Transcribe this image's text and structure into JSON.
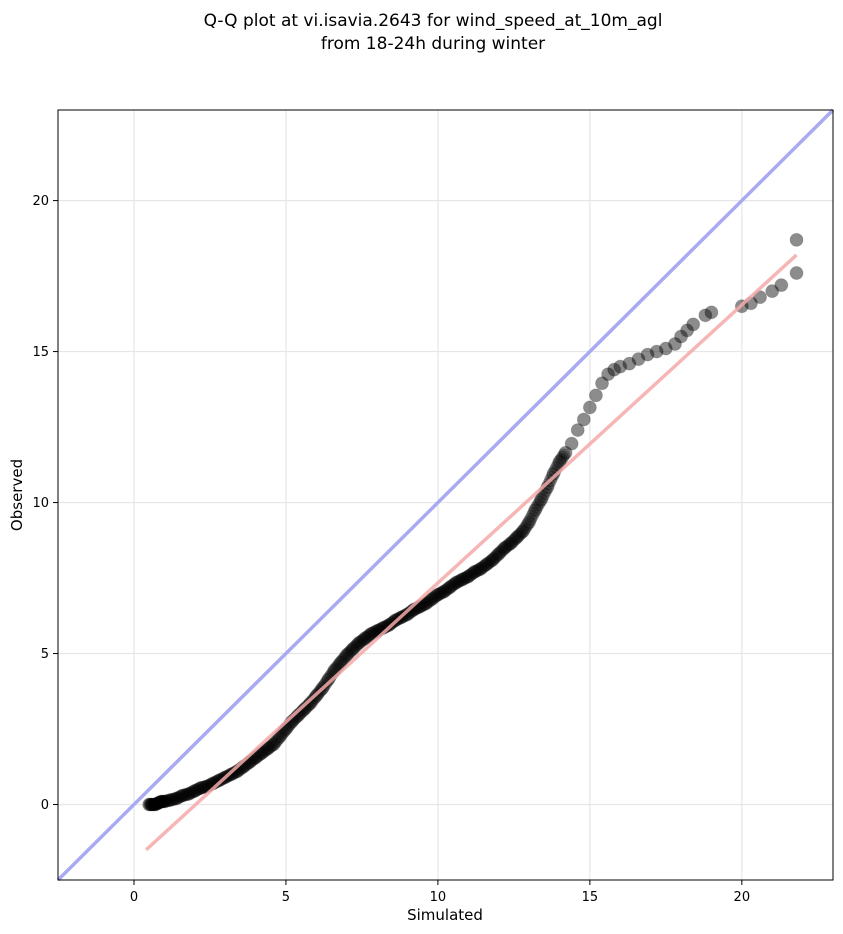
{
  "chart_data": {
    "type": "scatter",
    "title_line1": "Q-Q plot at vi.isavia.2643 for wind_speed_at_10m_agl",
    "title_line2": "from 18-24h during winter",
    "xlabel": "Simulated",
    "ylabel": "Observed",
    "xlim": [
      -2.5,
      23
    ],
    "ylim": [
      -2.5,
      23
    ],
    "x_ticks": [
      0,
      5,
      10,
      15,
      20
    ],
    "y_ticks": [
      0,
      5,
      10,
      15,
      20
    ],
    "grid": true,
    "colors": {
      "points": "#000000",
      "identity_line": "#a9aaf2",
      "fit_line": "#f5a9a9"
    },
    "identity_line": {
      "x": [
        -2.5,
        23
      ],
      "y": [
        -2.5,
        23
      ]
    },
    "fit_line": {
      "x": [
        0.4,
        21.8
      ],
      "y": [
        -1.5,
        18.2
      ]
    },
    "points": [
      [
        0.5,
        0.0
      ],
      [
        0.6,
        0.0
      ],
      [
        0.7,
        0.0
      ],
      [
        0.8,
        0.05
      ],
      [
        0.9,
        0.1
      ],
      [
        1.0,
        0.1
      ],
      [
        1.2,
        0.15
      ],
      [
        1.4,
        0.2
      ],
      [
        1.6,
        0.3
      ],
      [
        1.8,
        0.35
      ],
      [
        2.0,
        0.45
      ],
      [
        2.2,
        0.55
      ],
      [
        2.4,
        0.6
      ],
      [
        2.6,
        0.7
      ],
      [
        2.8,
        0.8
      ],
      [
        3.0,
        0.9
      ],
      [
        3.2,
        1.0
      ],
      [
        3.4,
        1.1
      ],
      [
        3.6,
        1.25
      ],
      [
        3.8,
        1.4
      ],
      [
        4.0,
        1.55
      ],
      [
        4.2,
        1.7
      ],
      [
        4.4,
        1.85
      ],
      [
        4.6,
        2.0
      ],
      [
        4.8,
        2.25
      ],
      [
        5.0,
        2.5
      ],
      [
        5.2,
        2.75
      ],
      [
        5.4,
        2.95
      ],
      [
        5.6,
        3.15
      ],
      [
        5.8,
        3.35
      ],
      [
        6.0,
        3.6
      ],
      [
        6.2,
        3.85
      ],
      [
        6.4,
        4.15
      ],
      [
        6.6,
        4.45
      ],
      [
        6.8,
        4.7
      ],
      [
        7.0,
        4.95
      ],
      [
        7.2,
        5.15
      ],
      [
        7.4,
        5.35
      ],
      [
        7.6,
        5.5
      ],
      [
        7.8,
        5.65
      ],
      [
        8.0,
        5.75
      ],
      [
        8.2,
        5.85
      ],
      [
        8.4,
        5.95
      ],
      [
        8.6,
        6.1
      ],
      [
        8.8,
        6.2
      ],
      [
        9.0,
        6.3
      ],
      [
        9.2,
        6.45
      ],
      [
        9.4,
        6.55
      ],
      [
        9.6,
        6.65
      ],
      [
        9.8,
        6.8
      ],
      [
        10.0,
        6.95
      ],
      [
        10.2,
        7.05
      ],
      [
        10.4,
        7.2
      ],
      [
        10.6,
        7.35
      ],
      [
        10.8,
        7.45
      ],
      [
        11.0,
        7.55
      ],
      [
        11.2,
        7.7
      ],
      [
        11.4,
        7.8
      ],
      [
        11.6,
        7.95
      ],
      [
        11.8,
        8.1
      ],
      [
        12.0,
        8.3
      ],
      [
        12.2,
        8.5
      ],
      [
        12.4,
        8.65
      ],
      [
        12.6,
        8.85
      ],
      [
        12.8,
        9.05
      ],
      [
        13.0,
        9.35
      ],
      [
        13.2,
        9.75
      ],
      [
        13.4,
        10.1
      ],
      [
        13.6,
        10.5
      ],
      [
        13.8,
        10.95
      ],
      [
        14.0,
        11.35
      ],
      [
        14.2,
        11.65
      ],
      [
        14.4,
        11.95
      ],
      [
        14.6,
        12.4
      ],
      [
        14.8,
        12.75
      ],
      [
        15.0,
        13.15
      ],
      [
        15.2,
        13.55
      ],
      [
        15.4,
        13.95
      ],
      [
        15.6,
        14.25
      ],
      [
        15.8,
        14.4
      ],
      [
        16.0,
        14.5
      ],
      [
        16.3,
        14.6
      ],
      [
        16.6,
        14.75
      ],
      [
        16.9,
        14.9
      ],
      [
        17.2,
        15.0
      ],
      [
        17.5,
        15.1
      ],
      [
        17.8,
        15.25
      ],
      [
        18.0,
        15.5
      ],
      [
        18.2,
        15.7
      ],
      [
        18.4,
        15.9
      ],
      [
        18.8,
        16.2
      ],
      [
        19.0,
        16.3
      ],
      [
        20.0,
        16.5
      ],
      [
        20.3,
        16.6
      ],
      [
        20.6,
        16.8
      ],
      [
        21.0,
        17.0
      ],
      [
        21.3,
        17.2
      ],
      [
        21.8,
        17.6
      ],
      [
        21.8,
        18.7
      ]
    ]
  }
}
